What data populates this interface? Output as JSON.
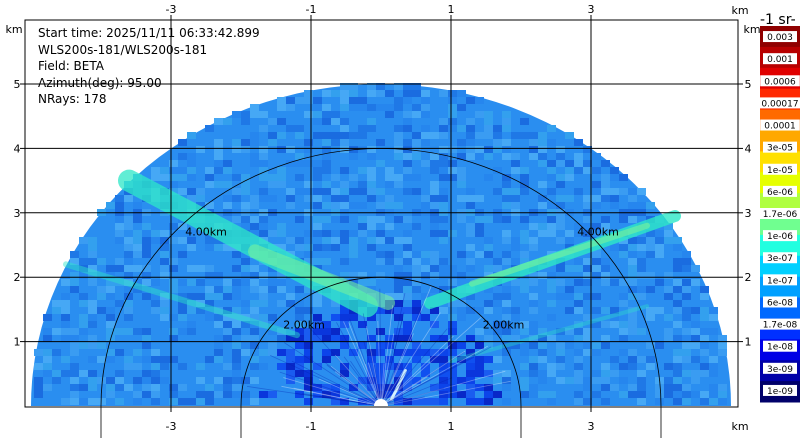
{
  "info": {
    "start_time": "Start time: 2025/11/11 06:33:42.899",
    "instrument": "WLS200s-181/WLS200s-181",
    "field": "Field: BETA",
    "azimuth": "Azimuth(deg): 95.00",
    "nrays": "NRays: 178"
  },
  "units": {
    "x": "km",
    "y": "km",
    "colorbar_title": "-1 sr-"
  },
  "colors": {
    "background_field": "#2a8ef0",
    "near_field": "#0c3fe6",
    "plume": "#2de8c8",
    "plume_core": "#7af59a",
    "grid": "#000000"
  },
  "chart_data": {
    "type": "heatmap",
    "title": "",
    "projection": "RHI half-disc",
    "xlim": [
      -5,
      5
    ],
    "ylim": [
      0,
      6
    ],
    "x_ticks": [
      "-3",
      "-1",
      "1",
      "3"
    ],
    "y_ticks": [
      "1",
      "2",
      "3",
      "4",
      "5"
    ],
    "range_rings": [
      {
        "radius_km": 2.0,
        "label": "2.00km"
      },
      {
        "radius_km": 4.0,
        "label": "4.00km"
      }
    ],
    "max_range_km": 5.0,
    "colorbar": {
      "scale": "log",
      "labels": [
        "1e-09",
        "3e-09",
        "1e-08",
        "1.7e-08",
        "6e-08",
        "1e-07",
        "3e-07",
        "1e-06",
        "1.7e-06",
        "6e-06",
        "1e-05",
        "3e-05",
        "0.0001",
        "0.00017",
        "0.0006",
        "0.001",
        "0.003"
      ],
      "colors": [
        "#00006a",
        "#0000a8",
        "#0000e6",
        "#0030ff",
        "#0068ff",
        "#00a0ff",
        "#00d0ff",
        "#22ffe0",
        "#70ff90",
        "#b0ff40",
        "#e6ff00",
        "#ffe000",
        "#ffa800",
        "#ff6a00",
        "#ff2800",
        "#e00000",
        "#b80000",
        "#900000"
      ]
    },
    "features": [
      {
        "name": "plume-left",
        "from_deg": 148,
        "to_deg": 110,
        "range_km": [
          0.5,
          5.0
        ]
      },
      {
        "name": "plume-right",
        "from_deg": 18,
        "to_deg": 40,
        "range_km": [
          0.8,
          4.6
        ]
      }
    ]
  }
}
